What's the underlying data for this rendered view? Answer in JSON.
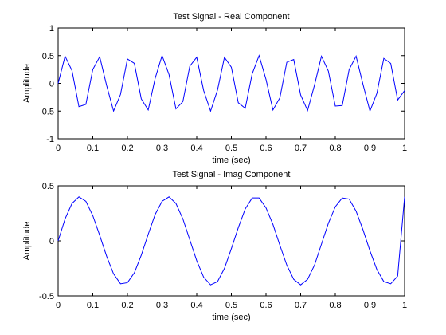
{
  "chart_data": [
    {
      "type": "line",
      "title": "Test Signal - Real Component",
      "xlabel": "time (sec)",
      "ylabel": "Amplitude",
      "xlim": [
        0,
        1
      ],
      "ylim": [
        -1,
        1
      ],
      "xticks": [
        0,
        0.1,
        0.2,
        0.3,
        0.4,
        0.5,
        0.6,
        0.7,
        0.8,
        0.9,
        1
      ],
      "xtick_labels": [
        "0",
        "0.1",
        "0.2",
        "0.3",
        "0.4",
        "0.5",
        "0.6",
        "0.7",
        "0.8",
        "0.9",
        "1"
      ],
      "yticks": [
        -1,
        -0.5,
        0,
        0.5,
        1
      ],
      "ytick_labels": [
        "-1",
        "-0.5",
        "0",
        "0.5",
        "1"
      ],
      "grid": false,
      "series": [
        {
          "color": "#0000ff",
          "x": [
            0,
            0.02,
            0.04,
            0.06,
            0.08,
            0.1,
            0.12,
            0.14,
            0.16,
            0.18,
            0.2,
            0.22,
            0.24,
            0.26,
            0.28,
            0.3,
            0.32,
            0.34,
            0.36,
            0.38,
            0.4,
            0.42,
            0.44,
            0.46,
            0.48,
            0.5,
            0.52,
            0.54,
            0.56,
            0.58,
            0.6,
            0.62,
            0.64,
            0.66,
            0.68,
            0.7,
            0.72,
            0.74,
            0.76,
            0.78,
            0.8,
            0.82,
            0.84,
            0.86,
            0.88,
            0.9,
            0.92,
            0.94,
            0.96,
            0.98,
            1
          ],
          "y": [
            0,
            0.49,
            0.23,
            -0.42,
            -0.38,
            0.25,
            0.48,
            -0.04,
            -0.5,
            -0.2,
            0.44,
            0.36,
            -0.28,
            -0.48,
            0.09,
            0.5,
            0.16,
            -0.46,
            -0.33,
            0.31,
            0.47,
            -0.13,
            -0.5,
            -0.12,
            0.47,
            0.29,
            -0.35,
            -0.45,
            0.17,
            0.5,
            0.07,
            -0.48,
            -0.26,
            0.38,
            0.43,
            -0.21,
            -0.49,
            -0.03,
            0.49,
            0.22,
            -0.41,
            -0.4,
            0.25,
            0.49,
            -0.02,
            -0.5,
            -0.18,
            0.45,
            0.36,
            -0.3,
            -0.13
          ]
        }
      ]
    },
    {
      "type": "line",
      "title": "Test Signal - Imag Component",
      "xlabel": "time (sec)",
      "ylabel": "Amplitude",
      "xlim": [
        0,
        1
      ],
      "ylim": [
        -0.5,
        0.5
      ],
      "xticks": [
        0,
        0.1,
        0.2,
        0.3,
        0.4,
        0.5,
        0.6,
        0.7,
        0.8,
        0.9,
        1
      ],
      "xtick_labels": [
        "0",
        "0.1",
        "0.2",
        "0.3",
        "0.4",
        "0.5",
        "0.6",
        "0.7",
        "0.8",
        "0.9",
        "1"
      ],
      "yticks": [
        -0.5,
        0,
        0.5
      ],
      "ytick_labels": [
        "-0.5",
        "0",
        "0.5"
      ],
      "grid": false,
      "series": [
        {
          "color": "#0000ff",
          "x": [
            0,
            0.02,
            0.04,
            0.06,
            0.08,
            0.1,
            0.12,
            0.14,
            0.16,
            0.18,
            0.2,
            0.22,
            0.24,
            0.26,
            0.28,
            0.3,
            0.32,
            0.34,
            0.36,
            0.38,
            0.4,
            0.42,
            0.44,
            0.46,
            0.48,
            0.5,
            0.52,
            0.54,
            0.56,
            0.58,
            0.6,
            0.62,
            0.64,
            0.66,
            0.68,
            0.7,
            0.72,
            0.74,
            0.76,
            0.78,
            0.8,
            0.82,
            0.84,
            0.86,
            0.88,
            0.9,
            0.92,
            0.94,
            0.96,
            0.98,
            1
          ],
          "y": [
            0,
            0.2,
            0.34,
            0.4,
            0.36,
            0.23,
            0.05,
            -0.14,
            -0.3,
            -0.39,
            -0.38,
            -0.29,
            -0.13,
            0.06,
            0.24,
            0.36,
            0.4,
            0.34,
            0.2,
            0.01,
            -0.18,
            -0.33,
            -0.4,
            -0.37,
            -0.25,
            -0.07,
            0.12,
            0.29,
            0.39,
            0.39,
            0.3,
            0.15,
            -0.04,
            -0.22,
            -0.35,
            -0.4,
            -0.35,
            -0.22,
            -0.03,
            0.16,
            0.31,
            0.39,
            0.38,
            0.27,
            0.1,
            -0.09,
            -0.26,
            -0.37,
            -0.39,
            -0.32,
            0.4
          ]
        }
      ]
    }
  ]
}
